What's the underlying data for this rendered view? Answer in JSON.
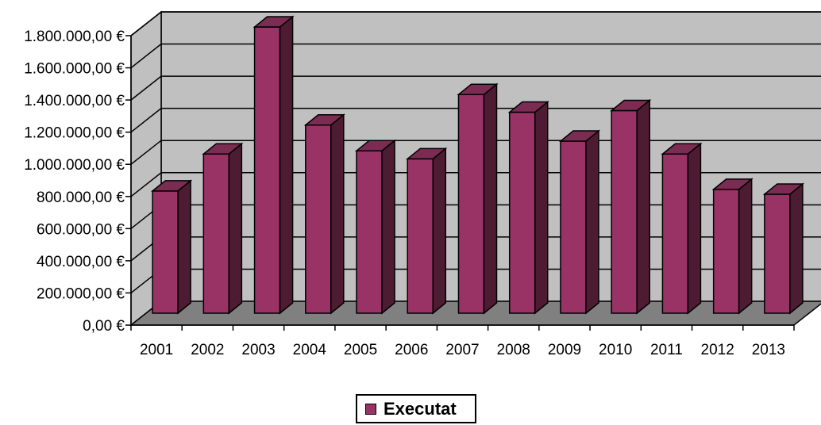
{
  "chart_data": {
    "type": "bar",
    "categories": [
      "2001",
      "2002",
      "2003",
      "2004",
      "2005",
      "2006",
      "2007",
      "2008",
      "2009",
      "2010",
      "2011",
      "2012",
      "2013"
    ],
    "series": [
      {
        "name": "Executat",
        "values": [
          760000,
          990000,
          1780000,
          1170000,
          1010000,
          960000,
          1360000,
          1250000,
          1070000,
          1260000,
          990000,
          770000,
          740000
        ]
      }
    ],
    "ylim": [
      0,
      1800000
    ],
    "yticks": [
      0,
      200000,
      400000,
      600000,
      800000,
      1000000,
      1200000,
      1400000,
      1600000,
      1800000
    ],
    "ytick_labels": [
      "0,00 €",
      "200.000,00 €",
      "400.000,00 €",
      "600.000,00 €",
      "800.000,00 €",
      "1.000.000,00 €",
      "1.200.000,00 €",
      "1.400.000,00 €",
      "1.600.000,00 €",
      "1.800.000,00 €"
    ],
    "grid": true,
    "legend_position": "bottom",
    "style": "3d-column",
    "colors": {
      "bar_front": "#993366",
      "bar_top": "#7a2c52",
      "bar_side": "#4d1c33",
      "wall": "#c0c0c0",
      "floor": "#808080",
      "gridline": "#000000"
    }
  }
}
